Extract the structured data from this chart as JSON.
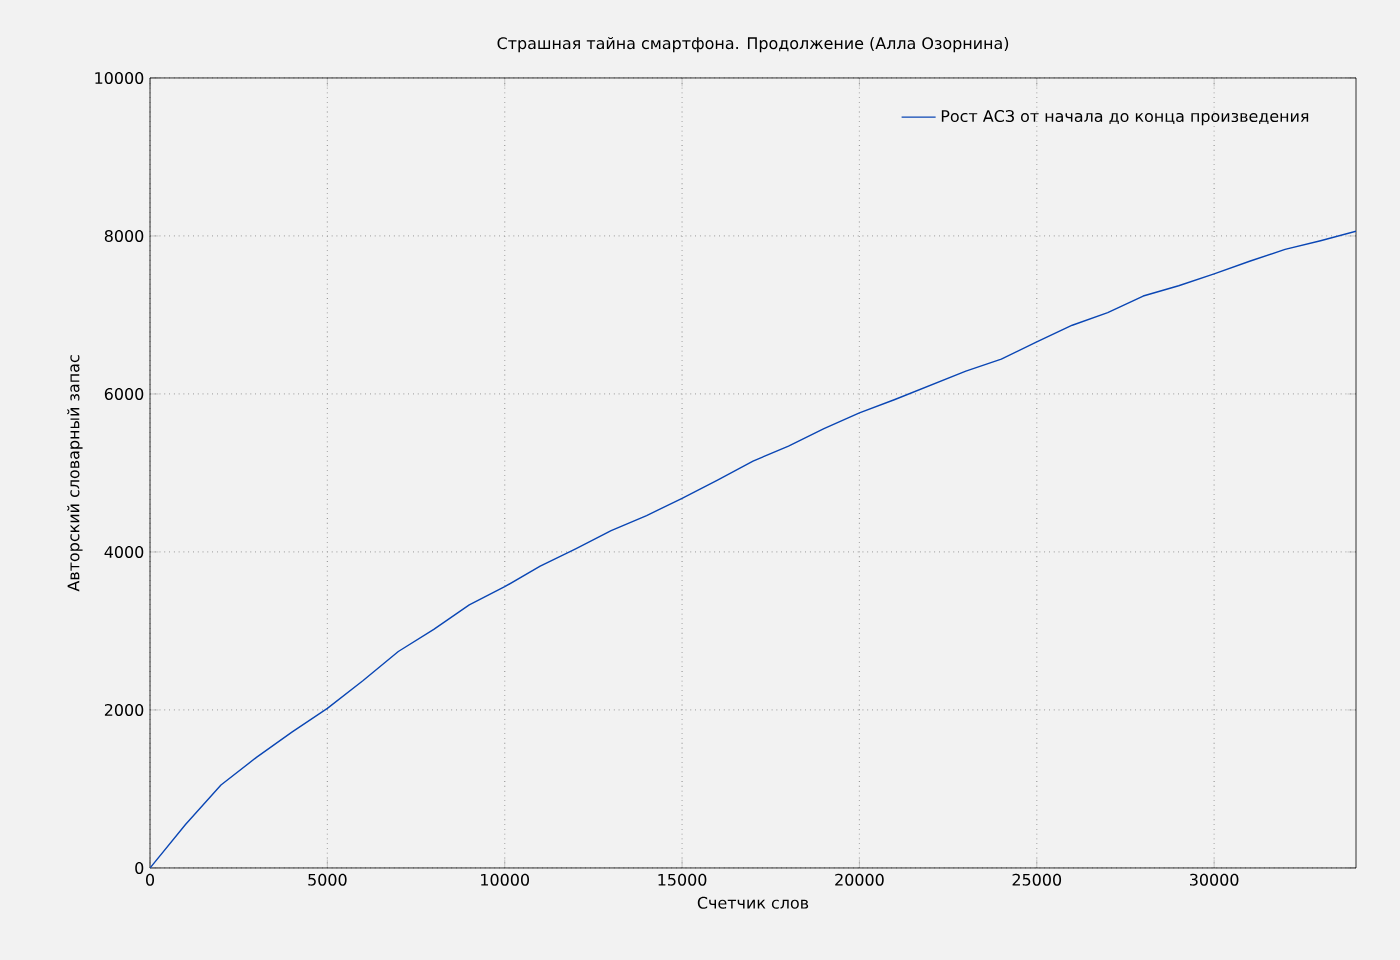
{
  "chart_data": {
    "type": "line",
    "title": "Страшная тайна смартфона. Продолжение (Алла Озорнина)",
    "xlabel": "Счетчик слов",
    "ylabel": "Авторский словарный запас",
    "x": [
      0,
      1000,
      2000,
      3000,
      4000,
      5000,
      6000,
      7000,
      8000,
      9000,
      10000,
      11000,
      12000,
      13000,
      14000,
      15000,
      16000,
      17000,
      18000,
      19000,
      20000,
      21000,
      22000,
      23000,
      24000,
      25000,
      26000,
      27000,
      28000,
      29000,
      30000,
      31000,
      32000,
      33000,
      34000
    ],
    "series": [
      {
        "name": "Рост АСЗ от начала до конца произведения",
        "color": "#0a46b4",
        "values": [
          0,
          550,
          1050,
          1400,
          1720,
          2020,
          2370,
          2740,
          3020,
          3330,
          3560,
          3820,
          4040,
          4270,
          4460,
          4680,
          4910,
          5150,
          5340,
          5560,
          5760,
          5930,
          6110,
          6290,
          6440,
          6660,
          6870,
          7030,
          7240,
          7370,
          7520,
          7680,
          7830,
          7940,
          8060
        ]
      }
    ],
    "xlim": [
      0,
      34000
    ],
    "ylim": [
      0,
      10000
    ],
    "xticks": [
      0,
      5000,
      10000,
      15000,
      20000,
      25000,
      30000
    ],
    "yticks": [
      0,
      2000,
      4000,
      6000,
      8000,
      10000
    ],
    "grid": true,
    "legend": "top right"
  }
}
